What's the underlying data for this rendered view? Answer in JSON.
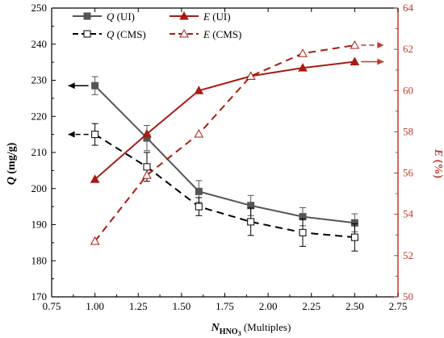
{
  "chart_data": {
    "type": "line",
    "x": [
      1.0,
      1.3,
      1.6,
      1.9,
      2.2,
      2.5
    ],
    "xlabel": {
      "prefix": "N",
      "sub": "HNO",
      "subsub": "3",
      "suffix": " (Multiples)"
    },
    "xlim": [
      0.75,
      2.75
    ],
    "xticks": [
      "0.75",
      "1.00",
      "1.25",
      "1.50",
      "1.75",
      "2.00",
      "2.25",
      "2.50",
      "2.75"
    ],
    "left_axis": {
      "label_var": "Q",
      "label_unit": " (mg/g)",
      "ylim": [
        170,
        250
      ],
      "ticks": [
        "170",
        "180",
        "190",
        "200",
        "210",
        "220",
        "230",
        "240",
        "250"
      ]
    },
    "right_axis": {
      "label_var": "E",
      "label_unit": " (%)",
      "ylim": [
        50,
        64
      ],
      "ticks": [
        "50",
        "52",
        "54",
        "56",
        "58",
        "60",
        "62",
        "64"
      ]
    },
    "series": [
      {
        "name_var": "Q",
        "name_suffix": " (UI)",
        "axis": "left",
        "values": [
          228.5,
          214.0,
          199.2,
          195.3,
          192.2,
          190.5
        ],
        "errors": [
          2.5,
          3.5,
          3.0,
          2.8,
          2.5,
          2.5
        ],
        "marker": "square-filled",
        "dash": "solid",
        "color": "#555555"
      },
      {
        "name_var": "E",
        "name_suffix": " (UI)",
        "axis": "right",
        "values": [
          55.7,
          57.9,
          60.0,
          60.7,
          61.1,
          61.4
        ],
        "marker": "triangle-filled",
        "dash": "solid",
        "color": "#a61d14"
      },
      {
        "name_var": "Q",
        "name_suffix": " (CMS)",
        "axis": "left",
        "values": [
          215.0,
          206.0,
          195.0,
          190.8,
          187.8,
          186.5
        ],
        "errors": [
          3.0,
          4.0,
          2.5,
          3.8,
          3.8,
          3.8
        ],
        "marker": "square-open",
        "dash": "dashed",
        "color": "#000000"
      },
      {
        "name_var": "E",
        "name_suffix": " (CMS)",
        "axis": "right",
        "values": [
          52.7,
          55.9,
          57.9,
          60.7,
          61.8,
          62.2
        ],
        "marker": "triangle-open",
        "dash": "dashed",
        "color": "#a61d14"
      }
    ],
    "legend_position": "top-left",
    "axis_colors": {
      "left": "#000000",
      "right": "#c0392b"
    },
    "grid": false
  }
}
